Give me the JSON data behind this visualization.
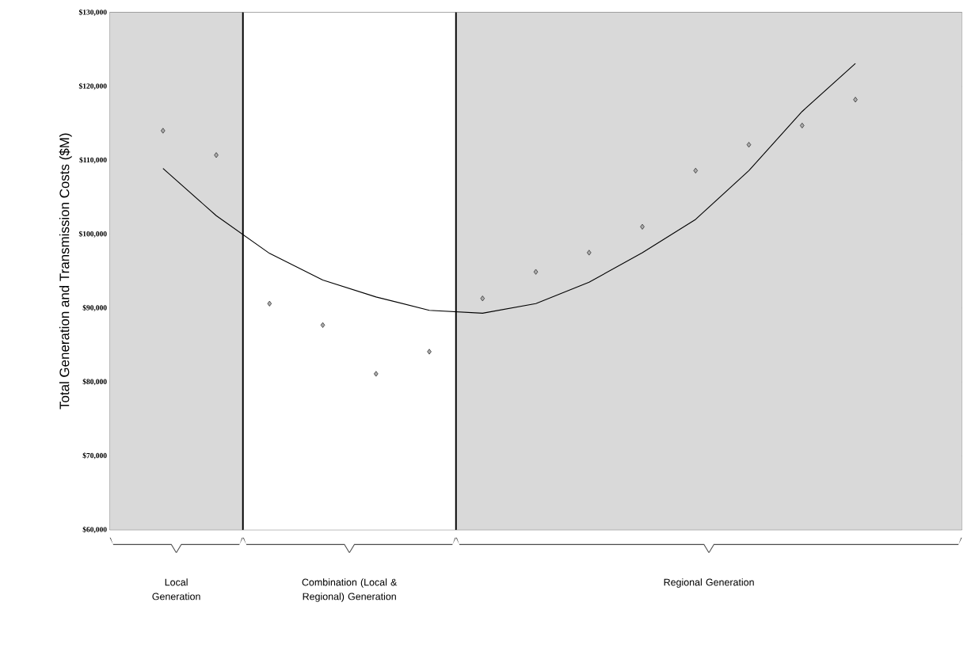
{
  "chart_data": {
    "type": "scatter",
    "ylabel": "Total Generation and Transmission Costs ($M)",
    "categories": [
      null,
      null,
      null,
      null,
      null,
      null,
      null,
      null,
      null,
      null,
      null,
      null,
      null,
      null
    ],
    "ylim": [
      60000,
      130000
    ],
    "yticks": [
      {
        "value": 60000,
        "label": "$60,000"
      },
      {
        "value": 70000,
        "label": "$70,000"
      },
      {
        "value": 80000,
        "label": "$80,000"
      },
      {
        "value": 90000,
        "label": "$90,000"
      },
      {
        "value": 100000,
        "label": "$100,000"
      },
      {
        "value": 110000,
        "label": "$110,000"
      },
      {
        "value": 120000,
        "label": "$120,000"
      },
      {
        "value": 130000,
        "label": "$130,000"
      }
    ],
    "tick_labels": "y",
    "grid": "y",
    "annotations": [
      "Local Generation",
      "Combination (Local & Regional) Generation",
      "Regional Generation"
    ],
    "series": [
      {
        "marker": "diamond",
        "color": "#333333",
        "values": [
          114000,
          110700,
          90600,
          87700,
          81100,
          84100,
          91300,
          94900,
          97500,
          101000,
          108600,
          112100,
          114700,
          118200
        ]
      },
      {
        "type": "line",
        "marker": "none",
        "color": "#000000",
        "values": [
          108900,
          102500,
          97400,
          93800,
          91500,
          89700,
          89300,
          90600,
          93500,
          97500,
          102000,
          108600,
          116600,
          123100
        ]
      }
    ]
  }
}
